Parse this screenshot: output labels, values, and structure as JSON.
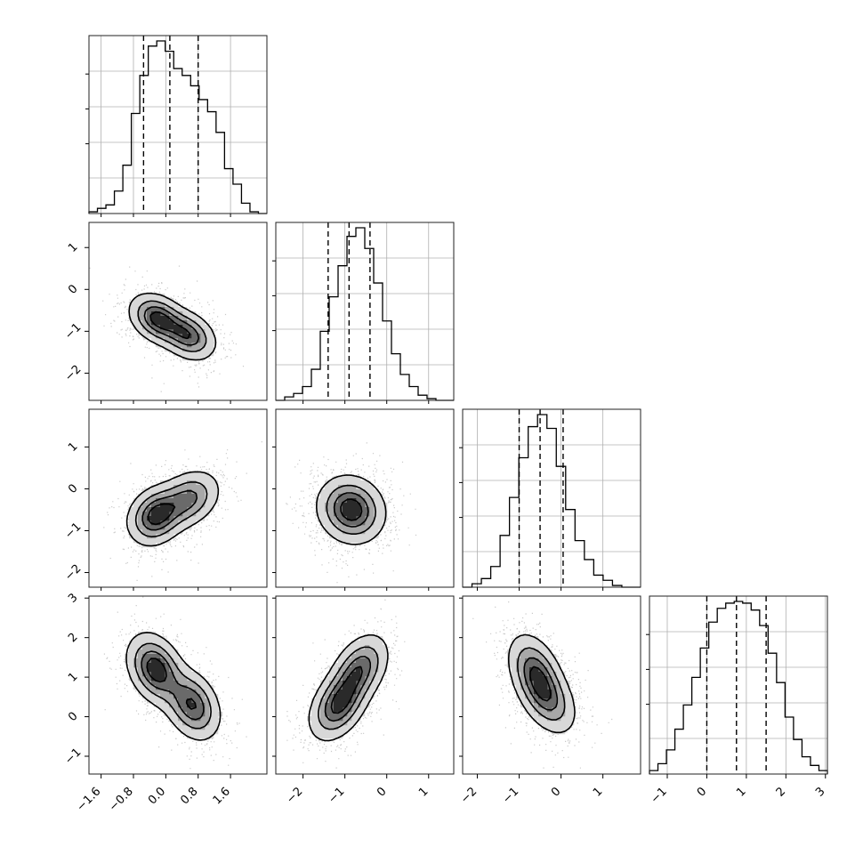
{
  "chart_data": {
    "type": "corner",
    "parameters": 4,
    "style": {
      "hist_color": "#000000",
      "scatter_color": "#8a8a8a",
      "contour_color": "#000000",
      "grid_color": "#b0b0b0",
      "quantile_line": "dashed"
    },
    "axis_ranges": [
      [
        -1.9,
        2.5
      ],
      [
        -2.65,
        1.6
      ],
      [
        -2.35,
        1.9
      ],
      [
        -1.45,
        3.05
      ]
    ],
    "x_ticks": [
      [
        "-1.6",
        "-0.8",
        "0.0",
        "0.8",
        "1.6"
      ],
      [
        "-2",
        "-1",
        "0",
        "1"
      ],
      [
        "-2",
        "-1",
        "0",
        "1"
      ],
      [
        "-1",
        "0",
        "1",
        "2",
        "3"
      ]
    ],
    "y_ticks": [
      [],
      [
        "1",
        "0",
        "-1",
        "-2"
      ],
      [
        "1",
        "0",
        "-1",
        "-2"
      ],
      [
        "3",
        "2",
        "1",
        "0",
        "-1"
      ]
    ],
    "quantiles": [
      [
        -0.55,
        0.1,
        0.8
      ],
      [
        -1.4,
        -0.9,
        -0.4
      ],
      [
        -1.0,
        -0.5,
        0.05
      ],
      [
        0.0,
        0.75,
        1.5
      ]
    ],
    "histograms": [
      [
        0.01,
        0.03,
        0.05,
        0.13,
        0.28,
        0.58,
        0.8,
        0.97,
        1.0,
        0.94,
        0.84,
        0.8,
        0.74,
        0.66,
        0.59,
        0.47,
        0.26,
        0.17,
        0.06,
        0.01,
        0.0
      ],
      [
        0.0,
        0.02,
        0.04,
        0.08,
        0.18,
        0.4,
        0.6,
        0.78,
        0.95,
        1.0,
        0.88,
        0.68,
        0.46,
        0.27,
        0.15,
        0.08,
        0.03,
        0.01,
        0.0,
        0.0
      ],
      [
        0.0,
        0.02,
        0.05,
        0.12,
        0.3,
        0.52,
        0.75,
        0.93,
        1.0,
        0.92,
        0.7,
        0.45,
        0.27,
        0.16,
        0.07,
        0.04,
        0.01,
        0.0,
        0.0
      ],
      [
        0.02,
        0.06,
        0.14,
        0.26,
        0.4,
        0.56,
        0.73,
        0.88,
        0.96,
        0.99,
        1.0,
        0.99,
        0.95,
        0.86,
        0.7,
        0.53,
        0.33,
        0.2,
        0.1,
        0.05,
        0.02
      ]
    ],
    "joint_modes": {
      "1_0": [
        {
          "x": -0.2,
          "y": -0.7,
          "sx": 0.35,
          "sy": 0.3,
          "r": -0.3,
          "w": 1.0
        },
        {
          "x": 0.55,
          "y": -1.1,
          "sx": 0.35,
          "sy": 0.3,
          "r": -0.3,
          "w": 0.85
        }
      ],
      "2_0": [
        {
          "x": -0.25,
          "y": -0.65,
          "sx": 0.35,
          "sy": 0.35,
          "r": 0.2,
          "w": 1.0
        },
        {
          "x": 0.55,
          "y": -0.25,
          "sx": 0.4,
          "sy": 0.35,
          "r": 0.3,
          "w": 0.75
        }
      ],
      "3_0": [
        {
          "x": -0.25,
          "y": 1.2,
          "sx": 0.35,
          "sy": 0.45,
          "r": -0.3,
          "w": 1.0
        },
        {
          "x": 0.65,
          "y": 0.3,
          "sx": 0.35,
          "sy": 0.45,
          "r": -0.3,
          "w": 0.85
        }
      ],
      "2_1": [
        {
          "x": -0.85,
          "y": -0.5,
          "sx": 0.4,
          "sy": 0.4,
          "r": -0.1,
          "w": 1.0
        }
      ],
      "3_1": [
        {
          "x": -1.15,
          "y": 0.3,
          "sx": 0.35,
          "sy": 0.45,
          "r": 0.4,
          "w": 1.0
        },
        {
          "x": -0.65,
          "y": 1.2,
          "sx": 0.35,
          "sy": 0.45,
          "r": 0.4,
          "w": 0.85
        }
      ],
      "3_2": [
        {
          "x": -0.6,
          "y": 1.1,
          "sx": 0.33,
          "sy": 0.5,
          "r": -0.4,
          "w": 1.0
        },
        {
          "x": -0.3,
          "y": 0.4,
          "sx": 0.35,
          "sy": 0.45,
          "r": -0.4,
          "w": 0.7
        }
      ]
    }
  }
}
